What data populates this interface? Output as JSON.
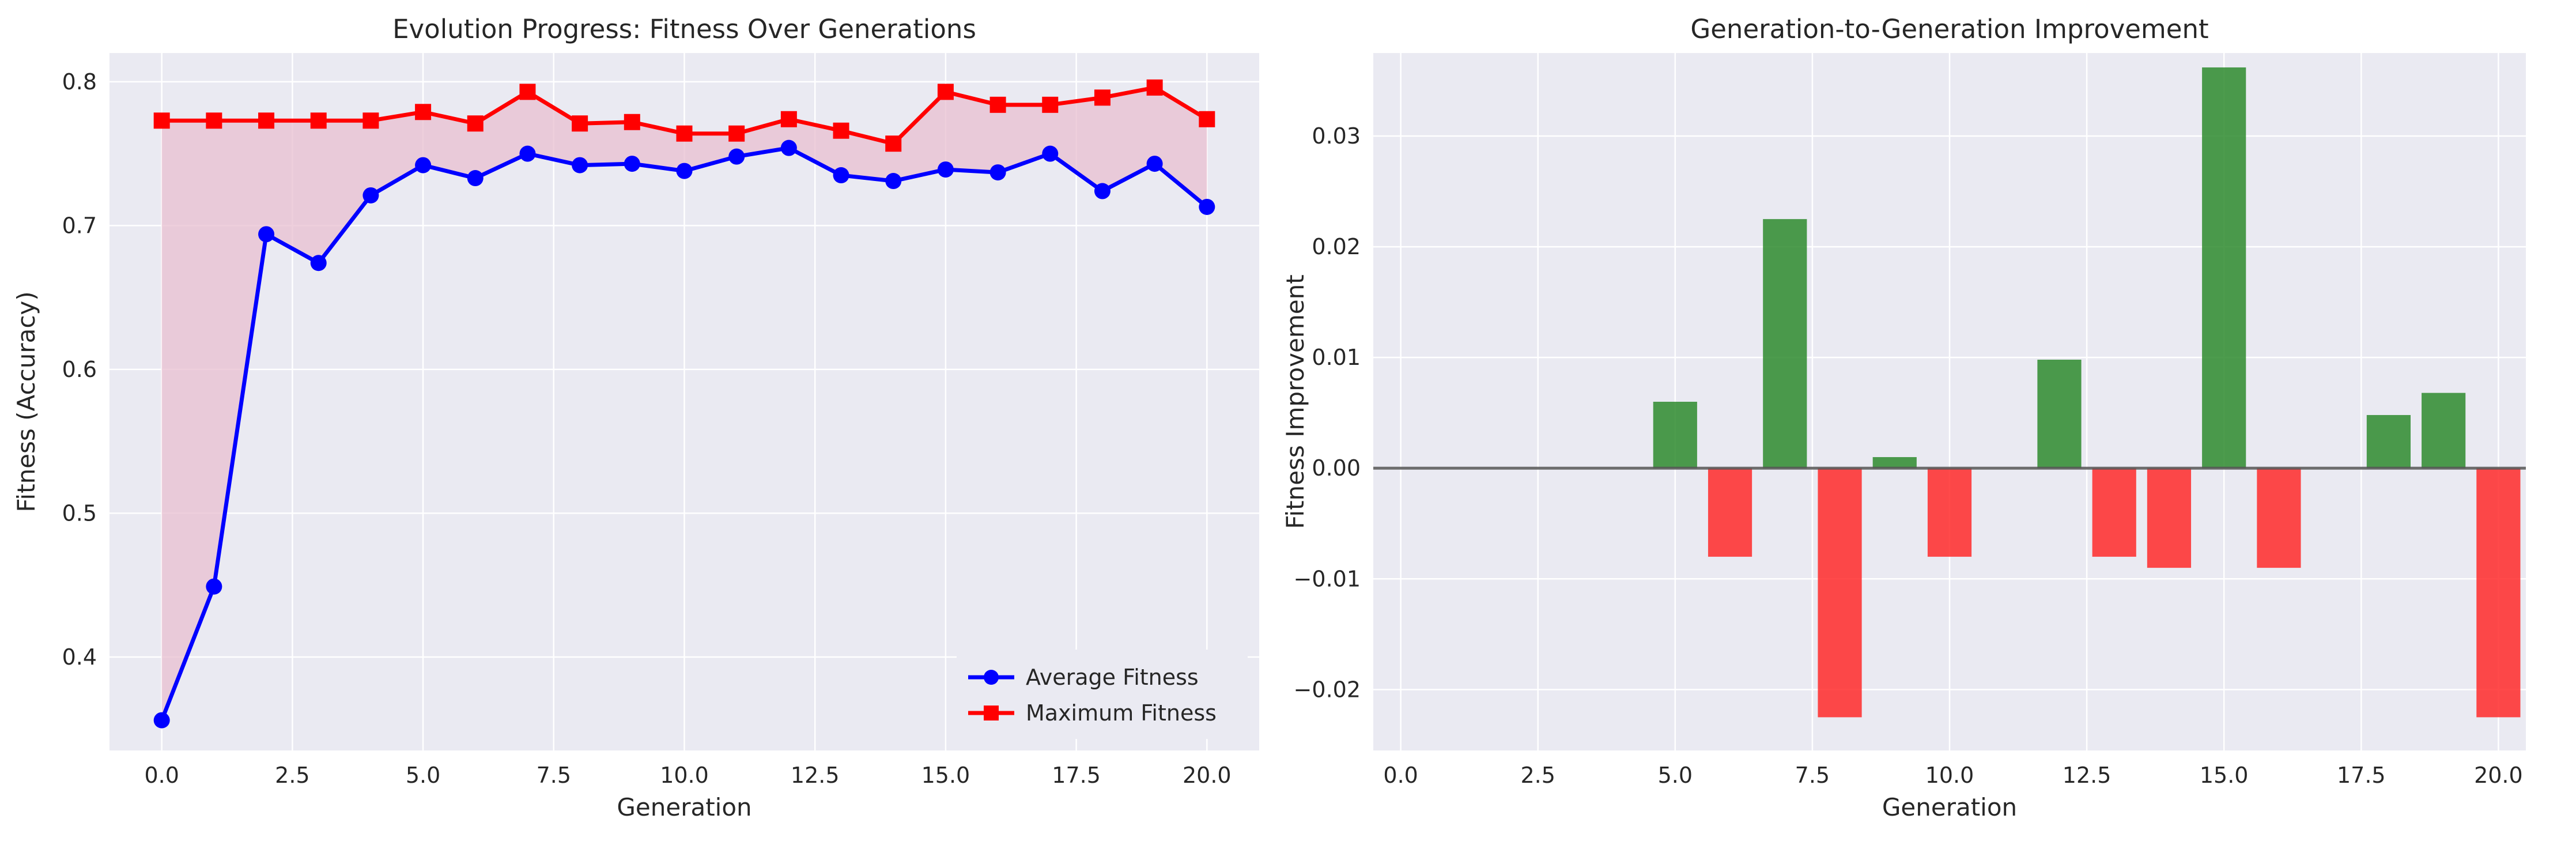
{
  "chart_data": [
    {
      "type": "line",
      "title": "Evolution Progress: Fitness Over Generations",
      "xlabel": "Generation",
      "ylabel": "Fitness (Accuracy)",
      "xlim": [
        -1.0,
        21.0
      ],
      "ylim": [
        0.335,
        0.82
      ],
      "xticks": [
        0,
        2.5,
        5,
        7.5,
        10,
        12.5,
        15,
        17.5,
        20
      ],
      "xtick_labels": [
        "0.0",
        "2.5",
        "5.0",
        "7.5",
        "10.0",
        "12.5",
        "15.0",
        "17.5",
        "20.0"
      ],
      "yticks": [
        0.4,
        0.5,
        0.6,
        0.7,
        0.8
      ],
      "ytick_labels": [
        "0.4",
        "0.5",
        "0.6",
        "0.7",
        "0.8"
      ],
      "grid": true,
      "legend_position": "lower-right",
      "fill_between": {
        "lower": "Average Fitness",
        "upper": "Maximum Fitness",
        "color": "#e8bfd0"
      },
      "x": [
        0,
        1,
        2,
        3,
        4,
        5,
        6,
        7,
        8,
        9,
        10,
        11,
        12,
        13,
        14,
        15,
        16,
        17,
        18,
        19,
        20
      ],
      "series": [
        {
          "name": "Average Fitness",
          "color": "#0000ff",
          "marker": "circle",
          "values": [
            0.356,
            0.449,
            0.694,
            0.674,
            0.721,
            0.742,
            0.733,
            0.75,
            0.742,
            0.743,
            0.738,
            0.748,
            0.754,
            0.735,
            0.731,
            0.739,
            0.737,
            0.75,
            0.724,
            0.743,
            0.713
          ]
        },
        {
          "name": "Maximum Fitness",
          "color": "#ff0000",
          "marker": "square",
          "values": [
            0.773,
            0.773,
            0.773,
            0.773,
            0.773,
            0.779,
            0.771,
            0.793,
            0.771,
            0.772,
            0.764,
            0.764,
            0.774,
            0.766,
            0.757,
            0.793,
            0.784,
            0.784,
            0.789,
            0.796,
            0.774
          ]
        }
      ]
    },
    {
      "type": "bar",
      "title": "Generation-to-Generation Improvement",
      "xlabel": "Generation",
      "ylabel": "Fitness Improvement",
      "xlim": [
        -0.5,
        20.5
      ],
      "ylim": [
        -0.0255,
        0.0375
      ],
      "xticks": [
        0,
        2.5,
        5,
        7.5,
        10,
        12.5,
        15,
        17.5,
        20
      ],
      "xtick_labels": [
        "0.0",
        "2.5",
        "5.0",
        "7.5",
        "10.0",
        "12.5",
        "15.0",
        "17.5",
        "20.0"
      ],
      "yticks": [
        -0.02,
        -0.01,
        0.0,
        0.01,
        0.02,
        0.03
      ],
      "ytick_labels": [
        "−0.02",
        "−0.01",
        "0.00",
        "0.01",
        "0.02",
        "0.03"
      ],
      "grid": true,
      "zero_line": true,
      "positive_color": "#2e8b2e",
      "negative_color": "#ff2a2a",
      "x": [
        1,
        2,
        3,
        4,
        5,
        6,
        7,
        8,
        9,
        10,
        11,
        12,
        13,
        14,
        15,
        16,
        17,
        18,
        19,
        20
      ],
      "values": [
        0,
        0,
        0,
        0,
        0.006,
        -0.008,
        0.0225,
        -0.0225,
        0.001,
        -0.008,
        0,
        0.0098,
        -0.008,
        -0.009,
        0.0362,
        -0.009,
        0,
        0.0048,
        0.0068,
        -0.0225
      ]
    }
  ]
}
